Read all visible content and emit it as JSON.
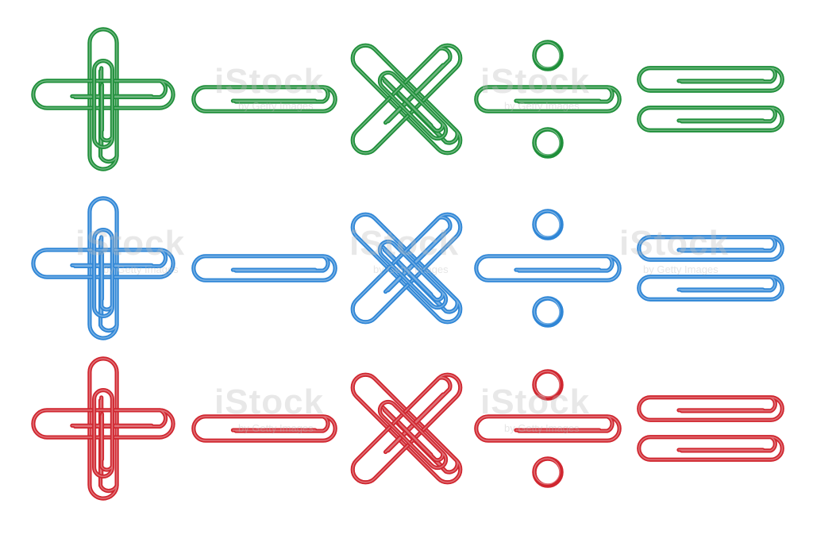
{
  "watermark": {
    "brand": "iStock",
    "credit": "by Getty Images"
  },
  "clip_colors": {
    "green": "#1f8f3a",
    "blue": "#2f86d6",
    "red": "#d0262f"
  },
  "rows": [
    {
      "color": "green",
      "symbols": [
        "plus",
        "minus",
        "multiply",
        "divide",
        "equals"
      ]
    },
    {
      "color": "blue",
      "symbols": [
        "plus",
        "minus",
        "multiply",
        "divide",
        "equals"
      ]
    },
    {
      "color": "red",
      "symbols": [
        "plus",
        "minus",
        "multiply",
        "divide",
        "equals"
      ]
    }
  ]
}
